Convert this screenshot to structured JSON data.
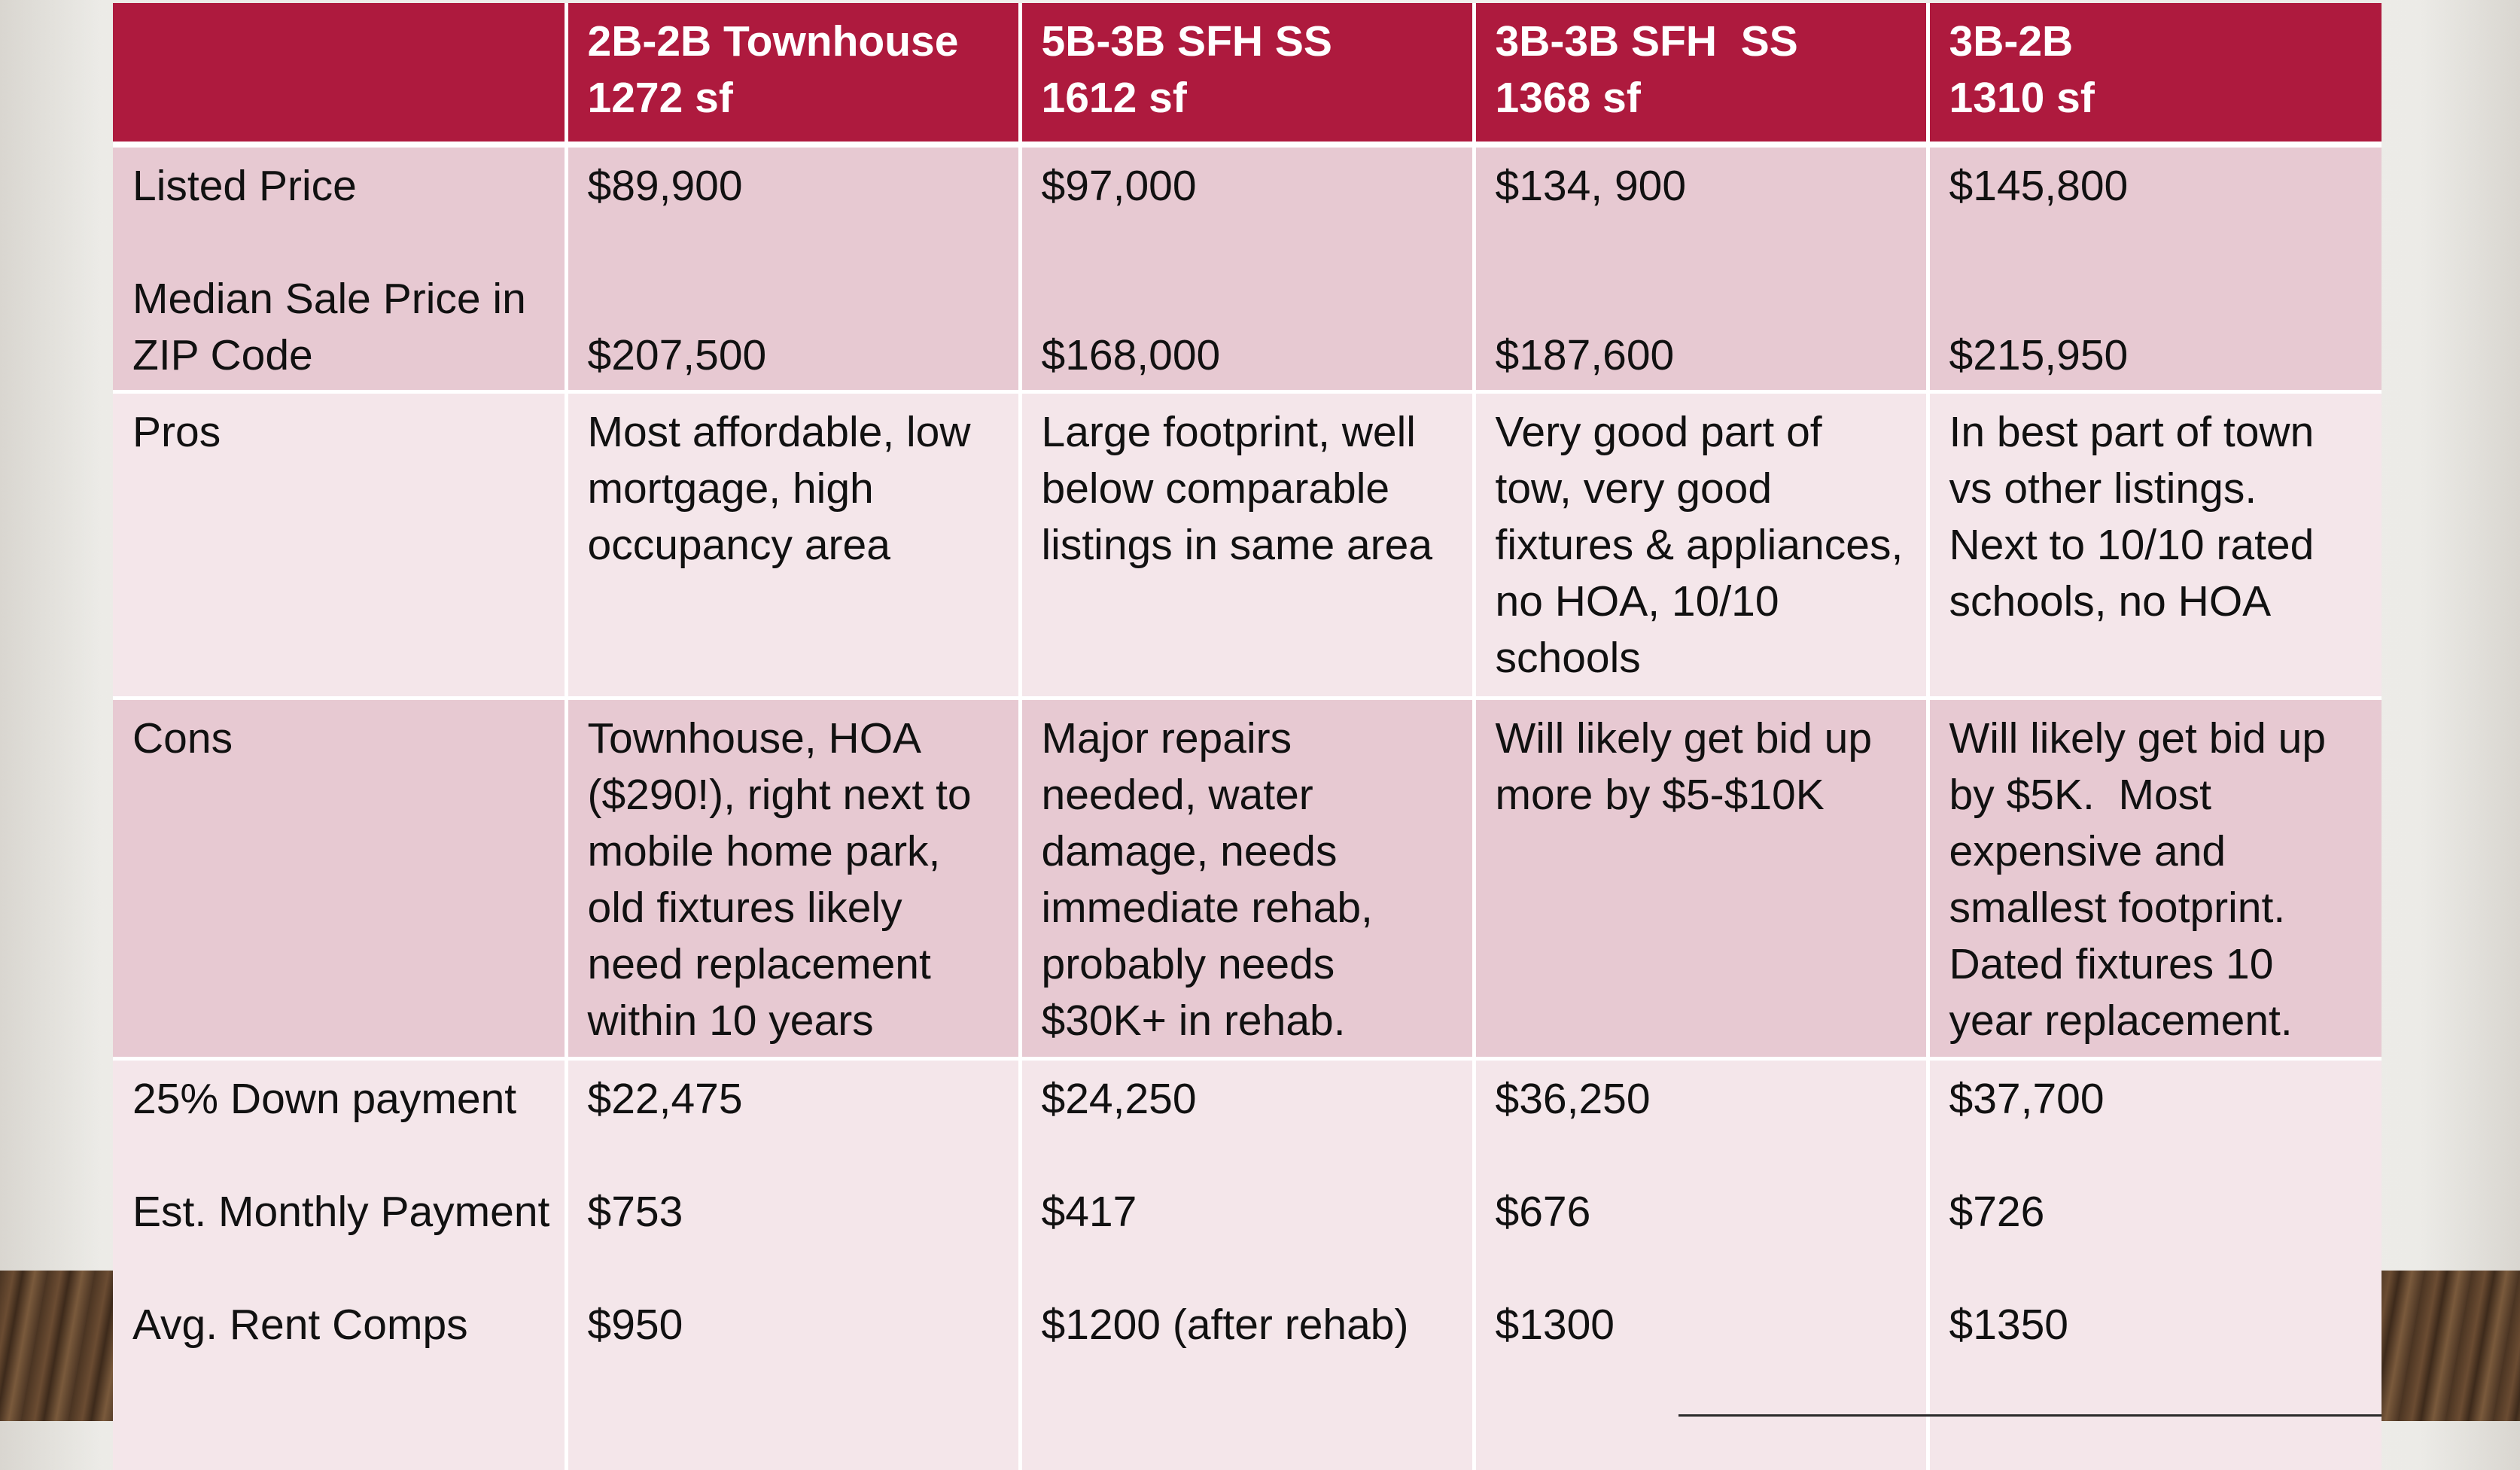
{
  "header": {
    "col1": [
      "2B-2B Townhouse",
      "1272 sf"
    ],
    "col2": [
      "5B-3B SFH SS",
      "1612 sf"
    ],
    "col3": [
      "3B-3B SFH  SS",
      "1368 sf"
    ],
    "col4": [
      "3B-2B",
      "1310 sf"
    ]
  },
  "rows": {
    "price": {
      "label_listed": "Listed Price",
      "label_median": [
        "Median Sale Price in",
        "ZIP Code"
      ],
      "listed": [
        "$89,900",
        "$97,000",
        "$134, 900",
        "$145,800"
      ],
      "median": [
        "$207,500",
        "$168,000",
        "$187,600",
        "$215,950"
      ]
    },
    "pros": {
      "label": "Pros",
      "values": [
        [
          "Most affordable, low",
          "mortgage, high",
          "occupancy area"
        ],
        [
          "Large footprint, well",
          "below comparable",
          "listings in same area"
        ],
        [
          "Very good part of",
          "tow, very good",
          "fixtures & appliances,",
          "no HOA, 10/10",
          "schools"
        ],
        [
          "In best part of town",
          "vs other listings.",
          "Next to 10/10 rated",
          "schools, no HOA"
        ]
      ]
    },
    "cons": {
      "label": "Cons",
      "values": [
        [
          "Townhouse, HOA",
          "($290!), right next to",
          "mobile home park,",
          "old fixtures likely",
          "need replacement",
          "within 10 years"
        ],
        [
          "Major repairs",
          "needed, water",
          "damage, needs",
          "immediate rehab,",
          "probably needs",
          "$30K+ in rehab."
        ],
        [
          "Will likely get bid up",
          "more by $5-$10K"
        ],
        [
          "Will likely get bid up",
          "by $5K.  Most",
          "expensive and",
          "smallest footprint.",
          "Dated fixtures 10",
          "year replacement."
        ]
      ]
    },
    "financials": {
      "label_down": "25% Down payment",
      "label_monthly": "Est. Monthly Payment",
      "label_rent": "Avg. Rent Comps",
      "down": [
        "$22,475",
        "$24,250",
        "$36,250",
        "$37,700"
      ],
      "monthly": [
        "$753",
        "$417",
        "$676",
        "$726"
      ],
      "rent": [
        "$950",
        "$1200 (after rehab)",
        "$1300",
        "$1350"
      ]
    }
  },
  "colors": {
    "header_bg": "#ae1a3e",
    "band_dark": "#e7c9d2",
    "band_light": "#f4e6ea"
  }
}
